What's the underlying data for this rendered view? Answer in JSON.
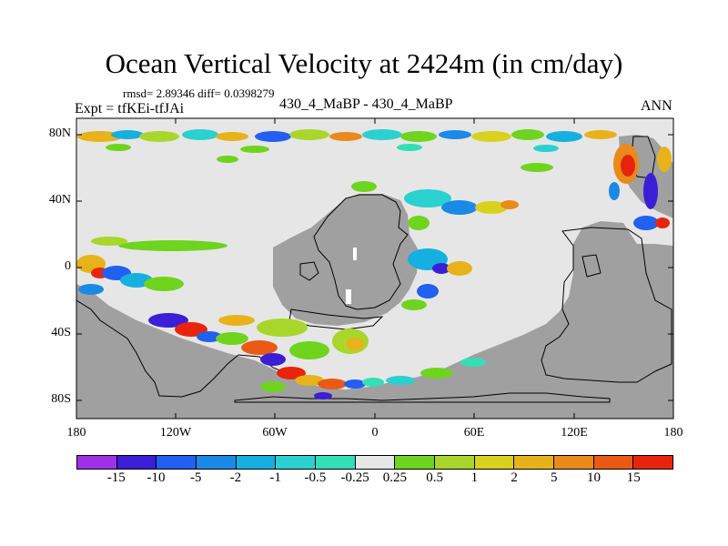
{
  "header": {
    "title": "Ocean Vertical Velocity at 2424m (in cm/day)",
    "stats": "rmsd= 2.89346 diff= 0.0398279",
    "expt": "Expt = tfKEi-tfJAi",
    "center": "430_4_MaBP - 430_4_MaBP",
    "season": "ANN"
  },
  "map": {
    "lat_labels": [
      "80N",
      "40N",
      "0",
      "40S",
      "80S"
    ],
    "lon_labels": [
      "180",
      "120W",
      "60W",
      "0",
      "60E",
      "120E",
      "180"
    ],
    "colors": {
      "land": "#a0a0a0",
      "near_zero": "#e6e6e6"
    }
  },
  "colorbar": {
    "labels": [
      "-15",
      "-10",
      "-5",
      "-2",
      "-1",
      "-0.5",
      "-0.25",
      "0.25",
      "0.5",
      "1",
      "2",
      "5",
      "10",
      "15"
    ],
    "colors": [
      "#9d31e8",
      "#3a1fd6",
      "#2160f0",
      "#1b8ae6",
      "#15b0e0",
      "#2bd0d0",
      "#33dfb5",
      "#e6e6e6",
      "#6ed41e",
      "#a8d62a",
      "#d8d21e",
      "#e8b21b",
      "#ea8a1a",
      "#ea5a14",
      "#e8250c"
    ]
  }
}
